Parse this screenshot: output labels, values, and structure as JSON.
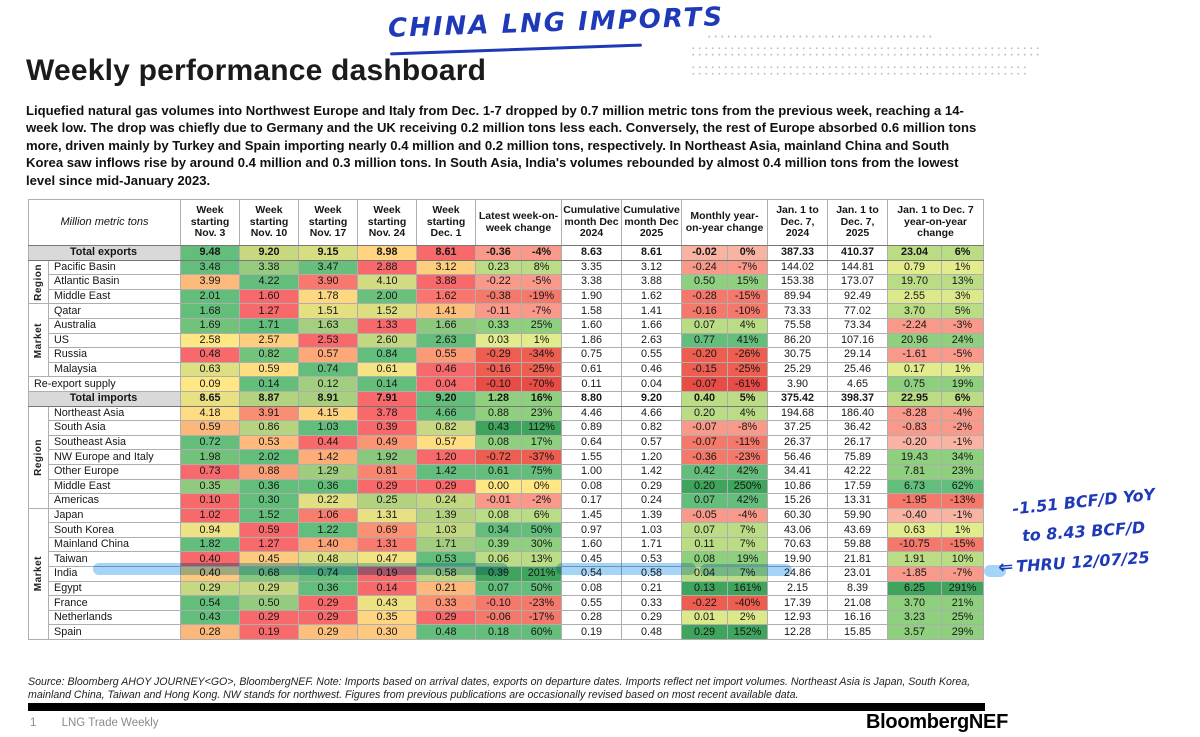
{
  "annotations": {
    "top_note": "CHINA LNG IMPORTS",
    "side_note_line1": "-1.51 BCF/D YoY",
    "side_note_line2": "to 8.43 BCF/D",
    "side_note_line3": "THRU 12/07/25",
    "arrow": "⇐",
    "ink_color": "#1e3ab8",
    "highlight_color": "rgba(64,166,240,0.48)"
  },
  "page": {
    "title": "Weekly performance dashboard",
    "intro": "Liquefied natural gas volumes into Northwest Europe and Italy from Dec. 1-7 dropped by 0.7 million metric tons from the previous week, reaching a 14-week low. The drop was chiefly due to Germany and the UK receiving 0.2 million tons less each. Conversely, the rest of Europe absorbed 0.6 million tons more, driven mainly by Turkey and Spain importing nearly 0.4 million and 0.2 million tons, respectively. In Northeast Asia, mainland China and South Korea saw inflows rise by around 0.4 million and 0.3 million tons. In South Asia, India's volumes rebounded by almost 0.4 million tons from the lowest level since mid-January 2023."
  },
  "table": {
    "unit_label": "Million metric tons",
    "columns": [
      "Week starting Nov. 3",
      "Week starting Nov. 10",
      "Week starting Nov. 17",
      "Week starting Nov. 24",
      "Week starting Dec. 1",
      "Latest week-on-week change",
      "Cumulative month Dec 2024",
      "Cumulative month Dec 2025",
      "Monthly year-on-year change",
      "Jan. 1 to Dec. 7, 2024",
      "Jan. 1 to Dec. 7, 2025",
      "Jan. 1 to Dec. 7 year-on-year change"
    ],
    "heat_palette": {
      "low": "#F8696B",
      "mid": "#FFE784",
      "high": "#63BE7B"
    },
    "rows": [
      {
        "label": "Total exports",
        "group": null,
        "total": true,
        "weeks": [
          "9.48",
          "9.20",
          "9.15",
          "8.98",
          "8.61"
        ],
        "wow": [
          "-0.36",
          "-4%"
        ],
        "cum": [
          "8.63",
          "8.61"
        ],
        "moy": [
          "-0.02",
          "0%"
        ],
        "ytd": [
          "387.33",
          "410.37"
        ],
        "yty": [
          "23.04",
          "6%"
        ]
      },
      {
        "label": "Pacific Basin",
        "group": "Region",
        "total": false,
        "weeks": [
          "3.48",
          "3.38",
          "3.47",
          "2.88",
          "3.12"
        ],
        "wow": [
          "0.23",
          "8%"
        ],
        "cum": [
          "3.35",
          "3.12"
        ],
        "moy": [
          "-0.24",
          "-7%"
        ],
        "ytd": [
          "144.02",
          "144.81"
        ],
        "yty": [
          "0.79",
          "1%"
        ]
      },
      {
        "label": "Atlantic Basin",
        "group": "Region",
        "total": false,
        "weeks": [
          "3.99",
          "4.22",
          "3.90",
          "4.10",
          "3.88"
        ],
        "wow": [
          "-0.22",
          "-5%"
        ],
        "cum": [
          "3.38",
          "3.88"
        ],
        "moy": [
          "0.50",
          "15%"
        ],
        "ytd": [
          "153.38",
          "173.07"
        ],
        "yty": [
          "19.70",
          "13%"
        ]
      },
      {
        "label": "Middle East",
        "group": "Region",
        "total": false,
        "weeks": [
          "2.01",
          "1.60",
          "1.78",
          "2.00",
          "1.62"
        ],
        "wow": [
          "-0.38",
          "-19%"
        ],
        "cum": [
          "1.90",
          "1.62"
        ],
        "moy": [
          "-0.28",
          "-15%"
        ],
        "ytd": [
          "89.94",
          "92.49"
        ],
        "yty": [
          "2.55",
          "3%"
        ]
      },
      {
        "label": "Qatar",
        "group": "Market",
        "total": false,
        "weeks": [
          "1.68",
          "1.27",
          "1.51",
          "1.52",
          "1.41"
        ],
        "wow": [
          "-0.11",
          "-7%"
        ],
        "cum": [
          "1.58",
          "1.41"
        ],
        "moy": [
          "-0.16",
          "-10%"
        ],
        "ytd": [
          "73.33",
          "77.02"
        ],
        "yty": [
          "3.70",
          "5%"
        ]
      },
      {
        "label": "Australia",
        "group": "Market",
        "total": false,
        "weeks": [
          "1.69",
          "1.71",
          "1.63",
          "1.33",
          "1.66"
        ],
        "wow": [
          "0.33",
          "25%"
        ],
        "cum": [
          "1.60",
          "1.66"
        ],
        "moy": [
          "0.07",
          "4%"
        ],
        "ytd": [
          "75.58",
          "73.34"
        ],
        "yty": [
          "-2.24",
          "-3%"
        ]
      },
      {
        "label": "US",
        "group": "Market",
        "total": false,
        "weeks": [
          "2.58",
          "2.57",
          "2.53",
          "2.60",
          "2.63"
        ],
        "wow": [
          "0.03",
          "1%"
        ],
        "cum": [
          "1.86",
          "2.63"
        ],
        "moy": [
          "0.77",
          "41%"
        ],
        "ytd": [
          "86.20",
          "107.16"
        ],
        "yty": [
          "20.96",
          "24%"
        ]
      },
      {
        "label": "Russia",
        "group": "Market",
        "total": false,
        "weeks": [
          "0.48",
          "0.82",
          "0.57",
          "0.84",
          "0.55"
        ],
        "wow": [
          "-0.29",
          "-34%"
        ],
        "cum": [
          "0.75",
          "0.55"
        ],
        "moy": [
          "-0.20",
          "-26%"
        ],
        "ytd": [
          "30.75",
          "29.14"
        ],
        "yty": [
          "-1.61",
          "-5%"
        ]
      },
      {
        "label": "Malaysia",
        "group": "Market",
        "total": false,
        "weeks": [
          "0.63",
          "0.59",
          "0.74",
          "0.61",
          "0.46"
        ],
        "wow": [
          "-0.16",
          "-25%"
        ],
        "cum": [
          "0.61",
          "0.46"
        ],
        "moy": [
          "-0.15",
          "-25%"
        ],
        "ytd": [
          "25.29",
          "25.46"
        ],
        "yty": [
          "0.17",
          "1%"
        ]
      },
      {
        "label": "Re-export supply",
        "group": null,
        "total": false,
        "weeks": [
          "0.09",
          "0.14",
          "0.12",
          "0.14",
          "0.04"
        ],
        "wow": [
          "-0.10",
          "-70%"
        ],
        "cum": [
          "0.11",
          "0.04"
        ],
        "moy": [
          "-0.07",
          "-61%"
        ],
        "ytd": [
          "3.90",
          "4.65"
        ],
        "yty": [
          "0.75",
          "19%"
        ]
      },
      {
        "label": "Total imports",
        "group": null,
        "total": true,
        "weeks": [
          "8.65",
          "8.87",
          "8.91",
          "7.91",
          "9.20"
        ],
        "wow": [
          "1.28",
          "16%"
        ],
        "cum": [
          "8.80",
          "9.20"
        ],
        "moy": [
          "0.40",
          "5%"
        ],
        "ytd": [
          "375.42",
          "398.37"
        ],
        "yty": [
          "22.95",
          "6%"
        ]
      },
      {
        "label": "Northeast Asia",
        "group": "Region",
        "total": false,
        "weeks": [
          "4.18",
          "3.91",
          "4.15",
          "3.78",
          "4.66"
        ],
        "wow": [
          "0.88",
          "23%"
        ],
        "cum": [
          "4.46",
          "4.66"
        ],
        "moy": [
          "0.20",
          "4%"
        ],
        "ytd": [
          "194.68",
          "186.40"
        ],
        "yty": [
          "-8.28",
          "-4%"
        ]
      },
      {
        "label": "South Asia",
        "group": "Region",
        "total": false,
        "weeks": [
          "0.59",
          "0.86",
          "1.03",
          "0.39",
          "0.82"
        ],
        "wow": [
          "0.43",
          "112%"
        ],
        "cum": [
          "0.89",
          "0.82"
        ],
        "moy": [
          "-0.07",
          "-8%"
        ],
        "ytd": [
          "37.25",
          "36.42"
        ],
        "yty": [
          "-0.83",
          "-2%"
        ]
      },
      {
        "label": "Southeast Asia",
        "group": "Region",
        "total": false,
        "weeks": [
          "0.72",
          "0.53",
          "0.44",
          "0.49",
          "0.57"
        ],
        "wow": [
          "0.08",
          "17%"
        ],
        "cum": [
          "0.64",
          "0.57"
        ],
        "moy": [
          "-0.07",
          "-11%"
        ],
        "ytd": [
          "26.37",
          "26.17"
        ],
        "yty": [
          "-0.20",
          "-1%"
        ]
      },
      {
        "label": "NW Europe and Italy",
        "group": "Region",
        "total": false,
        "weeks": [
          "1.98",
          "2.02",
          "1.42",
          "1.92",
          "1.20"
        ],
        "wow": [
          "-0.72",
          "-37%"
        ],
        "cum": [
          "1.55",
          "1.20"
        ],
        "moy": [
          "-0.36",
          "-23%"
        ],
        "ytd": [
          "56.46",
          "75.89"
        ],
        "yty": [
          "19.43",
          "34%"
        ]
      },
      {
        "label": "Other Europe",
        "group": "Region",
        "total": false,
        "weeks": [
          "0.73",
          "0.88",
          "1.29",
          "0.81",
          "1.42"
        ],
        "wow": [
          "0.61",
          "75%"
        ],
        "cum": [
          "1.00",
          "1.42"
        ],
        "moy": [
          "0.42",
          "42%"
        ],
        "ytd": [
          "34.41",
          "42.22"
        ],
        "yty": [
          "7.81",
          "23%"
        ]
      },
      {
        "label": "Middle East",
        "group": "Region",
        "total": false,
        "weeks": [
          "0.35",
          "0.36",
          "0.36",
          "0.29",
          "0.29"
        ],
        "wow": [
          "0.00",
          "0%"
        ],
        "cum": [
          "0.08",
          "0.29"
        ],
        "moy": [
          "0.20",
          "250%"
        ],
        "ytd": [
          "10.86",
          "17.59"
        ],
        "yty": [
          "6.73",
          "62%"
        ]
      },
      {
        "label": "Americas",
        "group": "Region",
        "total": false,
        "weeks": [
          "0.10",
          "0.30",
          "0.22",
          "0.25",
          "0.24"
        ],
        "wow": [
          "-0.01",
          "-2%"
        ],
        "cum": [
          "0.17",
          "0.24"
        ],
        "moy": [
          "0.07",
          "42%"
        ],
        "ytd": [
          "15.26",
          "13.31"
        ],
        "yty": [
          "-1.95",
          "-13%"
        ]
      },
      {
        "label": "Japan",
        "group": "Market",
        "total": false,
        "weeks": [
          "1.02",
          "1.52",
          "1.06",
          "1.31",
          "1.39"
        ],
        "wow": [
          "0.08",
          "6%"
        ],
        "cum": [
          "1.45",
          "1.39"
        ],
        "moy": [
          "-0.05",
          "-4%"
        ],
        "ytd": [
          "60.30",
          "59.90"
        ],
        "yty": [
          "-0.40",
          "-1%"
        ]
      },
      {
        "label": "South Korea",
        "group": "Market",
        "total": false,
        "weeks": [
          "0.94",
          "0.59",
          "1.22",
          "0.69",
          "1.03"
        ],
        "wow": [
          "0.34",
          "50%"
        ],
        "cum": [
          "0.97",
          "1.03"
        ],
        "moy": [
          "0.07",
          "7%"
        ],
        "ytd": [
          "43.06",
          "43.69"
        ],
        "yty": [
          "0.63",
          "1%"
        ]
      },
      {
        "label": "Mainland China",
        "group": "Market",
        "total": false,
        "weeks": [
          "1.82",
          "1.27",
          "1.40",
          "1.31",
          "1.71"
        ],
        "wow": [
          "0.39",
          "30%"
        ],
        "cum": [
          "1.60",
          "1.71"
        ],
        "moy": [
          "0.11",
          "7%"
        ],
        "ytd": [
          "70.63",
          "59.88"
        ],
        "yty": [
          "-10.75",
          "-15%"
        ]
      },
      {
        "label": "Taiwan",
        "group": "Market",
        "total": false,
        "weeks": [
          "0.40",
          "0.45",
          "0.48",
          "0.47",
          "0.53"
        ],
        "wow": [
          "0.06",
          "13%"
        ],
        "cum": [
          "0.45",
          "0.53"
        ],
        "moy": [
          "0.08",
          "19%"
        ],
        "ytd": [
          "19.90",
          "21.81"
        ],
        "yty": [
          "1.91",
          "10%"
        ]
      },
      {
        "label": "India",
        "group": "Market",
        "total": false,
        "weeks": [
          "0.40",
          "0.68",
          "0.74",
          "0.19",
          "0.58"
        ],
        "wow": [
          "0.39",
          "201%"
        ],
        "cum": [
          "0.54",
          "0.58"
        ],
        "moy": [
          "0.04",
          "7%"
        ],
        "ytd": [
          "24.86",
          "23.01"
        ],
        "yty": [
          "-1.85",
          "-7%"
        ]
      },
      {
        "label": "Egypt",
        "group": "Market",
        "total": false,
        "weeks": [
          "0.29",
          "0.29",
          "0.36",
          "0.14",
          "0.21"
        ],
        "wow": [
          "0.07",
          "50%"
        ],
        "cum": [
          "0.08",
          "0.21"
        ],
        "moy": [
          "0.13",
          "161%"
        ],
        "ytd": [
          "2.15",
          "8.39"
        ],
        "yty": [
          "6.25",
          "291%"
        ]
      },
      {
        "label": "France",
        "group": "Market",
        "total": false,
        "weeks": [
          "0.54",
          "0.50",
          "0.29",
          "0.43",
          "0.33"
        ],
        "wow": [
          "-0.10",
          "-23%"
        ],
        "cum": [
          "0.55",
          "0.33"
        ],
        "moy": [
          "-0.22",
          "-40%"
        ],
        "ytd": [
          "17.39",
          "21.08"
        ],
        "yty": [
          "3.70",
          "21%"
        ]
      },
      {
        "label": "Netherlands",
        "group": "Market",
        "total": false,
        "weeks": [
          "0.43",
          "0.29",
          "0.29",
          "0.35",
          "0.29"
        ],
        "wow": [
          "-0.06",
          "-17%"
        ],
        "cum": [
          "0.28",
          "0.29"
        ],
        "moy": [
          "0.01",
          "2%"
        ],
        "ytd": [
          "12.93",
          "16.16"
        ],
        "yty": [
          "3.23",
          "25%"
        ]
      },
      {
        "label": "Spain",
        "group": "Market",
        "total": false,
        "weeks": [
          "0.28",
          "0.19",
          "0.29",
          "0.30",
          "0.48"
        ],
        "wow": [
          "0.18",
          "60%"
        ],
        "cum": [
          "0.19",
          "0.48"
        ],
        "moy": [
          "0.29",
          "152%"
        ],
        "ytd": [
          "12.28",
          "15.85"
        ],
        "yty": [
          "3.57",
          "29%"
        ]
      }
    ]
  },
  "footer": {
    "source_note": "Source: Bloomberg AHOY JOURNEY<GO>, BloombergNEF. Note: Imports based on arrival dates, exports on departure dates. Imports reflect net import volumes. Northeast Asia is Japan, South Korea, mainland China, Taiwan and Hong Kong. NW stands for northwest. Figures from previous publications are occasionally revised based on most recent available data.",
    "page_number": "1",
    "doc_title": "LNG Trade Weekly",
    "brand": "BloombergNEF"
  }
}
